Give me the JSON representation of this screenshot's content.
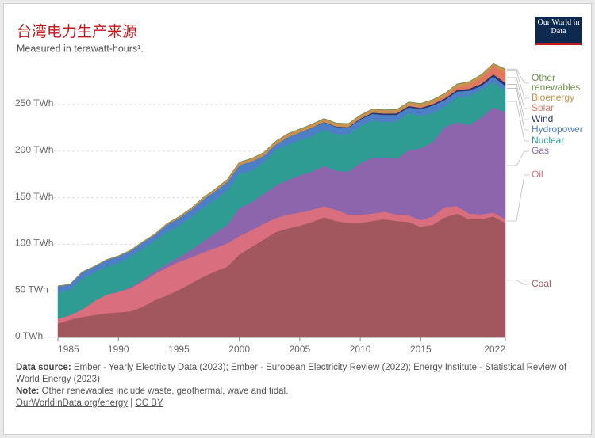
{
  "chart_data": {
    "type": "stacked_area",
    "title": "台湾电力生产来源",
    "subtitle": "Measured in terawatt-hours¹.",
    "logo": "Our World in Data",
    "source_label": "Data source:",
    "source": "Ember - Yearly Electricity Data (2023); Ember - European Electricity Review (2022); Energy Institute - Statistical Review of World Energy (2023)",
    "note_label": "Note:",
    "note": "Other renewables include waste, geothermal, wave and tidal.",
    "link": "OurWorldInData.org/energy",
    "separator": "|",
    "license": "CC BY",
    "x": [
      1985,
      1986,
      1987,
      1988,
      1989,
      1990,
      1991,
      1992,
      1993,
      1994,
      1995,
      1996,
      1997,
      1998,
      1999,
      2000,
      2001,
      2002,
      2003,
      2004,
      2005,
      2006,
      2007,
      2008,
      2009,
      2010,
      2011,
      2012,
      2013,
      2014,
      2015,
      2016,
      2017,
      2018,
      2019,
      2020,
      2021,
      2022
    ],
    "xlim": [
      1985,
      2022
    ],
    "xticks": [
      1985,
      1990,
      1995,
      2000,
      2005,
      2010,
      2015,
      2022
    ],
    "ylim": [
      0,
      290
    ],
    "yticks": [
      {
        "value": 0,
        "label": "0 TWh"
      },
      {
        "value": 50,
        "label": "50 TWh"
      },
      {
        "value": 100,
        "label": "100 TWh"
      },
      {
        "value": 150,
        "label": "150 TWh"
      },
      {
        "value": 200,
        "label": "200 TWh"
      },
      {
        "value": 250,
        "label": "250 TWh"
      }
    ],
    "grid": true,
    "series": [
      {
        "name": "Coal",
        "color": "#a2575e",
        "values": [
          15,
          19,
          22,
          24,
          26,
          27,
          28,
          33,
          40,
          45,
          51,
          58,
          65,
          71,
          76,
          89,
          97,
          105,
          113,
          117,
          120,
          124,
          129,
          125,
          123,
          123,
          125,
          127,
          125,
          124,
          119,
          121,
          129,
          133,
          127,
          127,
          130,
          123
        ]
      },
      {
        "name": "Oil",
        "color": "#d96f7e",
        "values": [
          5,
          5,
          8,
          15,
          20,
          22,
          25,
          27,
          28,
          30,
          30,
          28,
          26,
          25,
          25,
          20,
          18,
          17,
          15,
          15,
          14,
          13,
          12,
          12,
          9,
          9,
          8,
          8,
          7,
          7,
          7,
          9,
          11,
          8,
          6,
          5,
          4,
          4
        ]
      },
      {
        "name": "Gas",
        "color": "#8c65ad",
        "values": [
          0,
          0,
          0,
          0,
          0,
          0,
          1,
          2,
          3,
          4,
          5,
          8,
          12,
          16,
          20,
          30,
          30,
          32,
          35,
          37,
          40,
          41,
          43,
          42,
          46,
          55,
          60,
          58,
          60,
          70,
          77,
          80,
          86,
          90,
          95,
          104,
          113,
          115
        ]
      },
      {
        "name": "Nuclear",
        "color": "#2e9c93",
        "values": [
          28,
          27,
          33,
          31,
          30,
          31,
          33,
          33,
          33,
          34,
          34,
          35,
          36,
          36,
          37,
          37,
          34,
          34,
          38,
          38,
          38,
          38,
          39,
          39,
          40,
          40,
          40,
          38,
          40,
          40,
          35,
          31,
          22,
          27,
          31,
          30,
          27,
          23
        ]
      },
      {
        "name": "Hydropower",
        "color": "#4d7fc7",
        "values": [
          7,
          6,
          7,
          6,
          7,
          7,
          6,
          7,
          6,
          8,
          8,
          8,
          9,
          9,
          9,
          9,
          10,
          7,
          6,
          8,
          8,
          9,
          8,
          8,
          7,
          7,
          7,
          8,
          7,
          6,
          7,
          8,
          7,
          6,
          6,
          4,
          6,
          5
        ]
      },
      {
        "name": "Wind",
        "color": "#28366b",
        "values": [
          0,
          0,
          0,
          0,
          0,
          0,
          0,
          0,
          0,
          0,
          0,
          0,
          0,
          0,
          0,
          0,
          0,
          0,
          0,
          0,
          0.1,
          0.3,
          0.4,
          0.6,
          0.8,
          1,
          1.4,
          1.5,
          1.6,
          1.5,
          1.5,
          1.5,
          1.7,
          1.7,
          2,
          2.3,
          2.5,
          3.5
        ]
      },
      {
        "name": "Solar",
        "color": "#e2775f",
        "values": [
          0,
          0,
          0,
          0,
          0,
          0,
          0,
          0,
          0,
          0,
          0,
          0,
          0,
          0,
          0,
          0,
          0,
          0,
          0,
          0,
          0,
          0,
          0,
          0,
          0,
          0.02,
          0.06,
          0.1,
          0.3,
          0.5,
          0.9,
          1.1,
          1.7,
          2.7,
          4,
          6.1,
          7.9,
          11
        ]
      },
      {
        "name": "Bioenergy",
        "color": "#c8914f",
        "values": [
          0.3,
          0.3,
          0.4,
          0.4,
          0.5,
          0.6,
          0.7,
          0.8,
          1,
          1.2,
          1.4,
          1.6,
          1.9,
          2.2,
          2.5,
          3,
          3,
          3.2,
          3.4,
          3.5,
          3.5,
          3.5,
          3.5,
          3.5,
          3.5,
          3.5,
          3.6,
          3.6,
          3.6,
          3.6,
          3.6,
          3.6,
          3.6,
          3.6,
          3.5,
          3.5,
          3.5,
          3.5
        ]
      },
      {
        "name": "Other renewables",
        "color": "#6a8f4c",
        "values": [
          0,
          0,
          0,
          0,
          0,
          0,
          0,
          0,
          0,
          0,
          0.3,
          0.3,
          0.3,
          0.3,
          0.3,
          0.3,
          0.3,
          0.3,
          0.3,
          0.3,
          0.3,
          0.3,
          0.3,
          0.3,
          0.3,
          0.3,
          0.3,
          0.3,
          0.3,
          0.3,
          0.3,
          0.3,
          0.3,
          0.3,
          0.3,
          0.3,
          0.3,
          0.3
        ]
      }
    ]
  }
}
